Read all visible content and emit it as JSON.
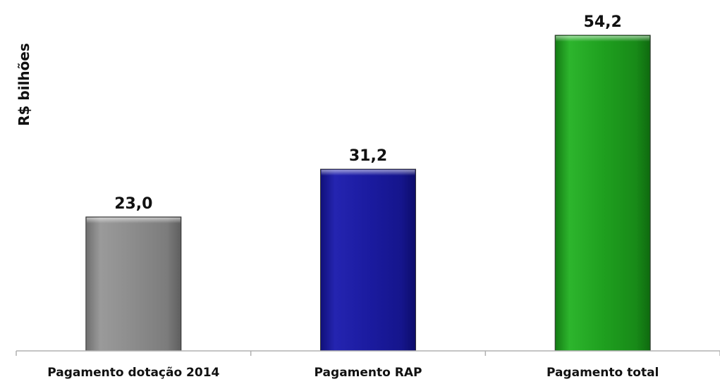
{
  "chart_data": {
    "type": "bar",
    "title": "",
    "xlabel": "",
    "ylabel": "R$ bilhões",
    "categories": [
      "Pagamento dotação 2014",
      "Pagamento RAP",
      "Pagamento total"
    ],
    "values": [
      23.0,
      31.2,
      54.2
    ],
    "value_labels": [
      "23,0",
      "31,2",
      "54,2"
    ],
    "bar_colors": [
      "#8a8a8a",
      "#1a1a9e",
      "#1f9e1f"
    ],
    "ylim": [
      0,
      54.2
    ],
    "grid": false,
    "legend": "none"
  }
}
